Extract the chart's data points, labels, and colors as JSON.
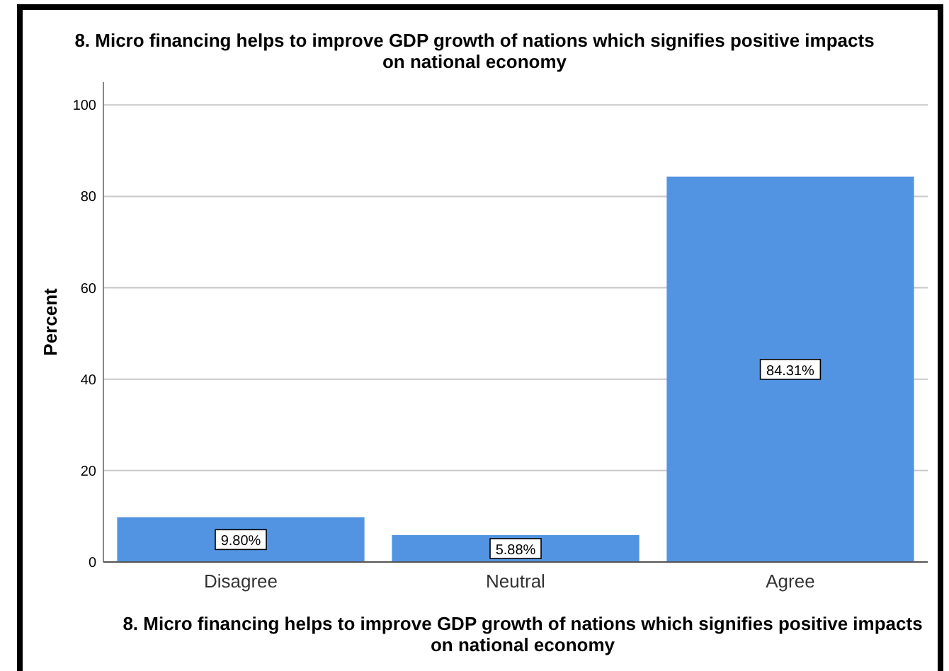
{
  "chart_data": {
    "type": "bar",
    "title": "8. Micro financing helps to improve GDP growth of nations which signifies positive impacts on national economy",
    "xlabel": "8. Micro financing helps to improve GDP growth of nations which signifies positive impacts on national economy",
    "ylabel": "Percent",
    "categories": [
      "Disagree",
      "Neutral",
      "Agree"
    ],
    "values": [
      9.8,
      5.88,
      84.31
    ],
    "value_labels": [
      "9.80%",
      "5.88%",
      "84.31%"
    ],
    "color": "#5294e2",
    "ylim": [
      0,
      105
    ],
    "yticks": [
      0,
      20,
      40,
      60,
      80,
      100
    ],
    "grid": "y"
  }
}
